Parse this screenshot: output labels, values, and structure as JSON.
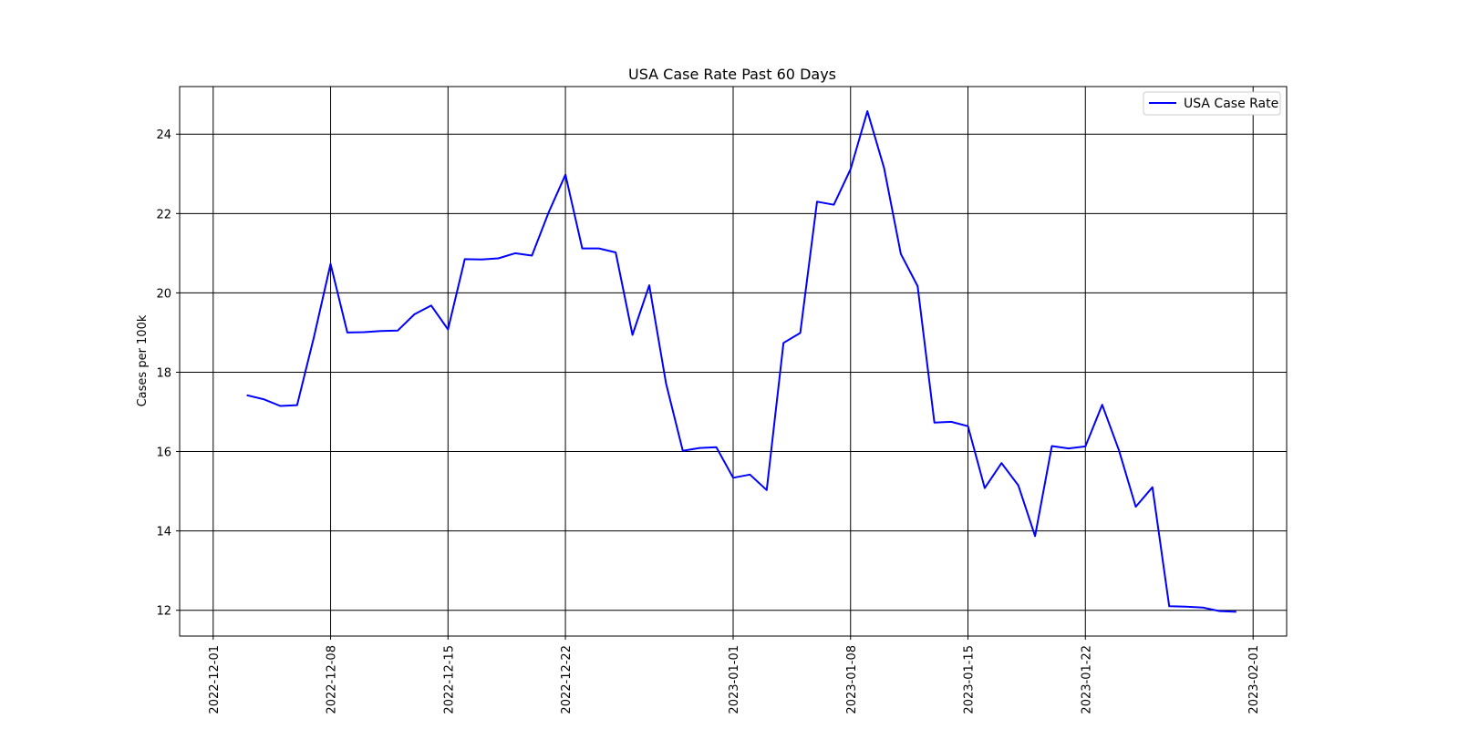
{
  "chart_data": {
    "type": "line",
    "title": "USA Case Rate Past 60 Days",
    "xlabel": "",
    "ylabel": "Cases per 100k",
    "xlim": [
      "2022-11-29",
      "2023-02-03"
    ],
    "ylim": [
      11.35,
      25.2
    ],
    "grid": true,
    "legend_position": "upper right",
    "x_ticks": [
      "2022-12-01",
      "2022-12-08",
      "2022-12-15",
      "2022-12-22",
      "2023-01-01",
      "2023-01-08",
      "2023-01-15",
      "2023-01-22",
      "2023-02-01"
    ],
    "y_ticks": [
      12,
      14,
      16,
      18,
      20,
      22,
      24
    ],
    "series": [
      {
        "name": "USA Case Rate",
        "color": "#0000ff",
        "x": [
          "2022-12-03",
          "2022-12-04",
          "2022-12-05",
          "2022-12-06",
          "2022-12-07",
          "2022-12-08",
          "2022-12-09",
          "2022-12-10",
          "2022-12-11",
          "2022-12-12",
          "2022-12-13",
          "2022-12-14",
          "2022-12-15",
          "2022-12-16",
          "2022-12-17",
          "2022-12-18",
          "2022-12-19",
          "2022-12-20",
          "2022-12-21",
          "2022-12-22",
          "2022-12-23",
          "2022-12-24",
          "2022-12-25",
          "2022-12-26",
          "2022-12-27",
          "2022-12-28",
          "2022-12-29",
          "2022-12-30",
          "2022-12-31",
          "2023-01-01",
          "2023-01-02",
          "2023-01-03",
          "2023-01-04",
          "2023-01-05",
          "2023-01-06",
          "2023-01-07",
          "2023-01-08",
          "2023-01-09",
          "2023-01-10",
          "2023-01-11",
          "2023-01-12",
          "2023-01-13",
          "2023-01-14",
          "2023-01-15",
          "2023-01-16",
          "2023-01-17",
          "2023-01-18",
          "2023-01-19",
          "2023-01-20",
          "2023-01-21",
          "2023-01-22",
          "2023-01-23",
          "2023-01-24",
          "2023-01-25",
          "2023-01-26",
          "2023-01-27",
          "2023-01-28",
          "2023-01-29",
          "2023-01-30",
          "2023-01-31"
        ],
        "values": [
          17.42,
          17.32,
          17.15,
          17.17,
          18.88,
          20.73,
          19.0,
          19.01,
          19.04,
          19.05,
          19.46,
          19.68,
          19.08,
          20.85,
          20.84,
          20.87,
          21.0,
          20.94,
          22.03,
          22.98,
          21.12,
          21.12,
          21.02,
          18.94,
          20.19,
          17.72,
          16.02,
          16.09,
          16.11,
          15.34,
          15.42,
          15.03,
          18.74,
          18.99,
          22.3,
          22.22,
          23.12,
          24.58,
          23.15,
          20.98,
          20.17,
          16.73,
          16.75,
          16.64,
          15.08,
          15.71,
          15.15,
          13.87,
          16.14,
          16.08,
          16.13,
          17.18,
          16.03,
          14.61,
          15.1,
          12.1,
          12.09,
          12.07,
          11.98,
          11.96
        ]
      }
    ]
  }
}
